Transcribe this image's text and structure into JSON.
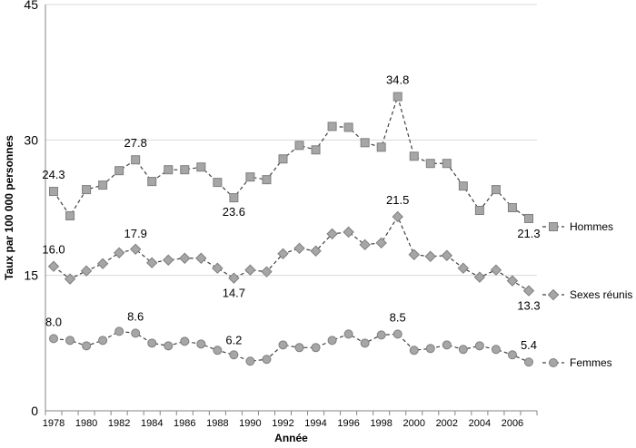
{
  "chart_data": {
    "type": "line",
    "xlabel": "Année",
    "ylabel": "Taux par 100 000 personnes",
    "ylim": [
      0,
      45
    ],
    "yticks": [
      0,
      15,
      30,
      45
    ],
    "x": [
      1978,
      1979,
      1980,
      1981,
      1982,
      1983,
      1984,
      1985,
      1986,
      1987,
      1988,
      1989,
      1990,
      1991,
      1992,
      1993,
      1994,
      1995,
      1996,
      1997,
      1998,
      1999,
      2000,
      2001,
      2002,
      2003,
      2004,
      2005,
      2006,
      2007
    ],
    "xtick_labels": [
      "1978",
      "1980",
      "1982",
      "1984",
      "1986",
      "1988",
      "1990",
      "1992",
      "1994",
      "1996",
      "1998",
      "2000",
      "2002",
      "2004",
      "2006"
    ],
    "grid": "horizontal",
    "legend": "right, at end of lines",
    "series": [
      {
        "name": "Hommes",
        "marker": "square",
        "color": "#a6a6a6",
        "values": [
          24.3,
          21.6,
          24.5,
          25.0,
          26.6,
          27.8,
          25.4,
          26.7,
          26.7,
          27.0,
          25.3,
          23.6,
          25.9,
          25.6,
          27.9,
          29.4,
          28.9,
          31.5,
          31.4,
          29.7,
          29.2,
          34.8,
          28.2,
          27.4,
          27.4,
          24.9,
          22.2,
          24.5,
          22.5,
          21.3
        ],
        "labels": [
          {
            "year": 1978,
            "text": "24.3"
          },
          {
            "year": 1983,
            "text": "27.8"
          },
          {
            "year": 1989,
            "text": "23.6"
          },
          {
            "year": 1999,
            "text": "34.8"
          },
          {
            "year": 2007,
            "text": "21.3"
          }
        ]
      },
      {
        "name": "Sexes réunis",
        "marker": "diamond",
        "color": "#a6a6a6",
        "values": [
          16.0,
          14.6,
          15.5,
          16.3,
          17.5,
          17.9,
          16.4,
          16.7,
          16.9,
          16.9,
          15.8,
          14.7,
          15.6,
          15.4,
          17.4,
          18.0,
          17.7,
          19.6,
          19.8,
          18.4,
          18.6,
          21.5,
          17.3,
          17.1,
          17.2,
          15.8,
          14.8,
          15.6,
          14.4,
          13.3
        ],
        "labels": [
          {
            "year": 1978,
            "text": "16.0"
          },
          {
            "year": 1983,
            "text": "17.9"
          },
          {
            "year": 1989,
            "text": "14.7"
          },
          {
            "year": 1999,
            "text": "21.5"
          },
          {
            "year": 2007,
            "text": "13.3"
          }
        ]
      },
      {
        "name": "Femmes",
        "marker": "circle",
        "color": "#a6a6a6",
        "values": [
          8.0,
          7.8,
          7.2,
          7.8,
          8.8,
          8.6,
          7.5,
          7.2,
          7.7,
          7.4,
          6.7,
          6.2,
          5.5,
          5.7,
          7.3,
          7.0,
          7.0,
          7.8,
          8.5,
          7.5,
          8.4,
          8.5,
          6.7,
          6.9,
          7.3,
          6.8,
          7.2,
          6.8,
          6.2,
          5.4
        ],
        "labels": [
          {
            "year": 1978,
            "text": "8.0"
          },
          {
            "year": 1983,
            "text": "8.6"
          },
          {
            "year": 1989,
            "text": "6.2"
          },
          {
            "year": 1999,
            "text": "8.5"
          },
          {
            "year": 2007,
            "text": "5.4"
          }
        ]
      }
    ]
  }
}
